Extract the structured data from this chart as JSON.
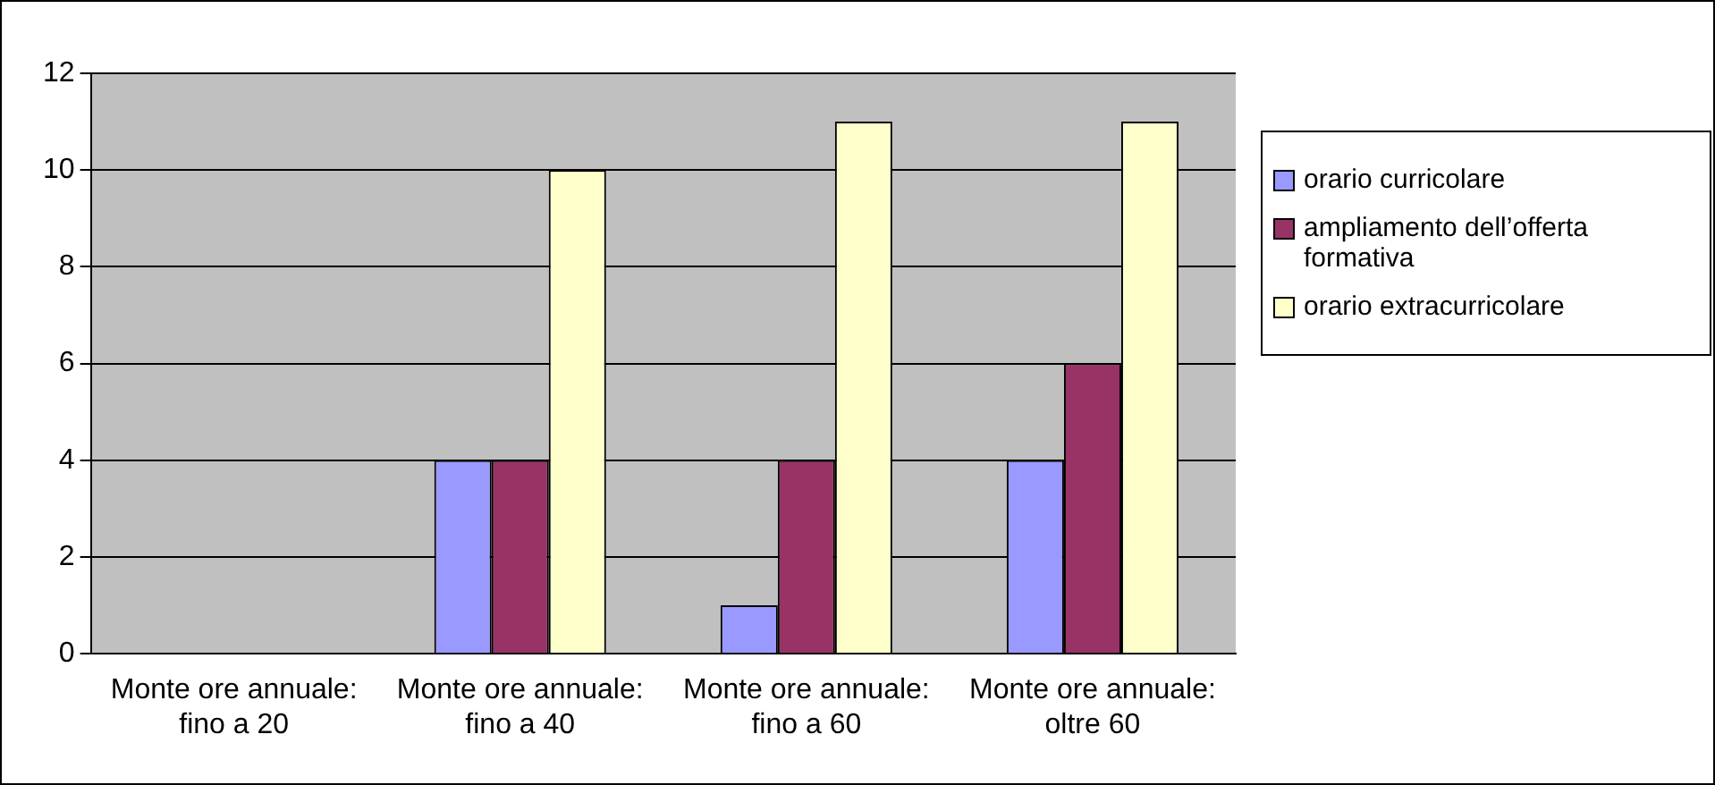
{
  "chart_data": {
    "type": "bar",
    "categories": [
      "Monte ore annuale: fino a 20",
      "Monte ore annuale: fino a 40",
      "Monte ore annuale: fino a 60",
      "Monte ore annuale: oltre 60"
    ],
    "series": [
      {
        "name": "orario curricolare",
        "color": "#9999ff",
        "values": [
          0,
          4,
          1,
          4
        ]
      },
      {
        "name": "ampliamento dell’offerta formativa",
        "color": "#993366",
        "values": [
          0,
          4,
          4,
          6
        ]
      },
      {
        "name": "orario extracurricolare",
        "color": "#ffffcc",
        "values": [
          0,
          10,
          11,
          11
        ]
      }
    ],
    "ylim": [
      0,
      12
    ],
    "yticks": [
      0,
      2,
      4,
      6,
      8,
      10,
      12
    ],
    "grid": "y",
    "legend": "right"
  }
}
